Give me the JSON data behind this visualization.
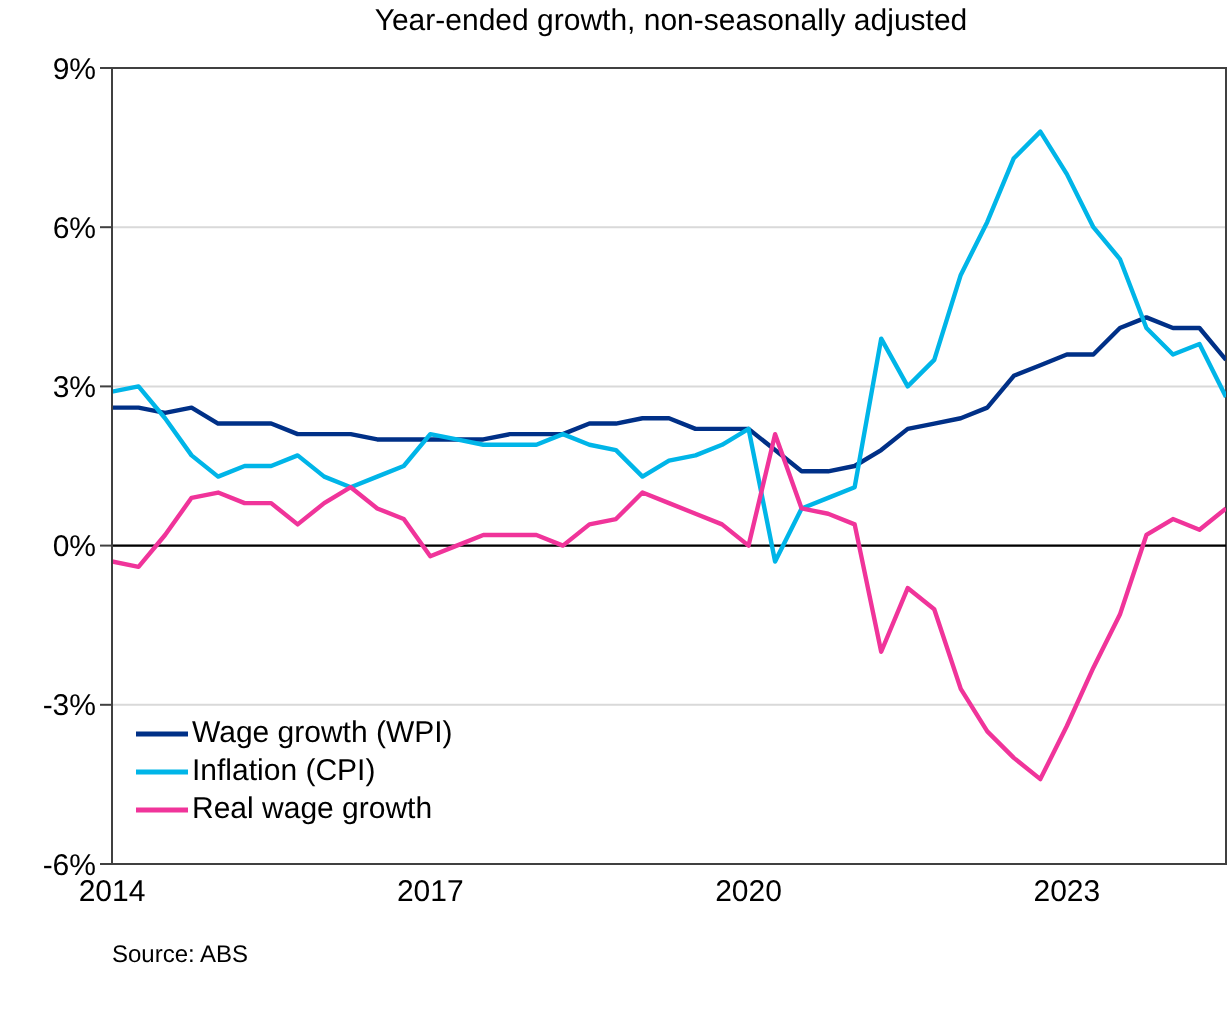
{
  "chart_data": {
    "type": "line",
    "subtitle": "Year-ended growth, non-seasonally adjusted",
    "x": [
      2014,
      2014.25,
      2014.5,
      2014.75,
      2015,
      2015.25,
      2015.5,
      2015.75,
      2016,
      2016.25,
      2016.5,
      2016.75,
      2017,
      2017.25,
      2017.5,
      2017.75,
      2018,
      2018.25,
      2018.5,
      2018.75,
      2019,
      2019.25,
      2019.5,
      2019.75,
      2020,
      2020.25,
      2020.5,
      2020.75,
      2021,
      2021.25,
      2021.5,
      2021.75,
      2022,
      2022.25,
      2022.5,
      2022.75,
      2023,
      2023.25,
      2023.5,
      2023.75,
      2024,
      2024.25,
      2024.5
    ],
    "series": [
      {
        "name": "Wage growth (WPI)",
        "color": "#003087",
        "values": [
          2.6,
          2.6,
          2.5,
          2.6,
          2.3,
          2.3,
          2.3,
          2.1,
          2.1,
          2.1,
          2.0,
          2.0,
          2.0,
          2.0,
          2.0,
          2.1,
          2.1,
          2.1,
          2.3,
          2.3,
          2.4,
          2.4,
          2.2,
          2.2,
          2.2,
          1.8,
          1.4,
          1.4,
          1.5,
          1.8,
          2.2,
          2.3,
          2.4,
          2.6,
          3.2,
          3.4,
          3.6,
          3.6,
          4.1,
          4.3,
          4.1,
          4.1,
          3.5
        ]
      },
      {
        "name": "Inflation (CPI)",
        "color": "#00b5e8",
        "values": [
          2.9,
          3.0,
          2.4,
          1.7,
          1.3,
          1.5,
          1.5,
          1.7,
          1.3,
          1.1,
          1.3,
          1.5,
          2.1,
          2.0,
          1.9,
          1.9,
          1.9,
          2.1,
          1.9,
          1.8,
          1.3,
          1.6,
          1.7,
          1.9,
          2.2,
          -0.3,
          0.7,
          0.9,
          1.1,
          3.9,
          3.0,
          3.5,
          5.1,
          6.1,
          7.3,
          7.8,
          7.0,
          6.0,
          5.4,
          4.1,
          3.6,
          3.8,
          2.8
        ]
      },
      {
        "name": "Real wage growth",
        "color": "#f0349a",
        "values": [
          -0.3,
          -0.4,
          0.2,
          0.9,
          1.0,
          0.8,
          0.8,
          0.4,
          0.8,
          1.1,
          0.7,
          0.5,
          -0.2,
          0.0,
          0.2,
          0.2,
          0.2,
          0.0,
          0.4,
          0.5,
          1.0,
          0.8,
          0.6,
          0.4,
          0.0,
          2.1,
          0.7,
          0.6,
          0.4,
          -2.0,
          -0.8,
          -1.2,
          -2.7,
          -3.5,
          -4.0,
          -4.4,
          -3.4,
          -2.3,
          -1.3,
          0.2,
          0.5,
          0.3,
          0.7
        ]
      }
    ],
    "xlim": [
      2014,
      2024.5
    ],
    "xticks": [
      2014,
      2017,
      2020,
      2023
    ],
    "ylim": [
      -6,
      9
    ],
    "yticks": [
      {
        "value": -6,
        "label": "-6%"
      },
      {
        "value": -3,
        "label": "-3%"
      },
      {
        "value": 0,
        "label": "0%"
      },
      {
        "value": 3,
        "label": "3%"
      },
      {
        "value": 6,
        "label": "6%"
      },
      {
        "value": 9,
        "label": "9%"
      }
    ],
    "ref_lines": [
      {
        "axis": "y",
        "value": 0,
        "color": "#000000"
      }
    ],
    "grid": "y",
    "legend": "bottom left",
    "marker": "none",
    "line_style": "solid",
    "annotations": [
      "Source: ABS"
    ]
  }
}
